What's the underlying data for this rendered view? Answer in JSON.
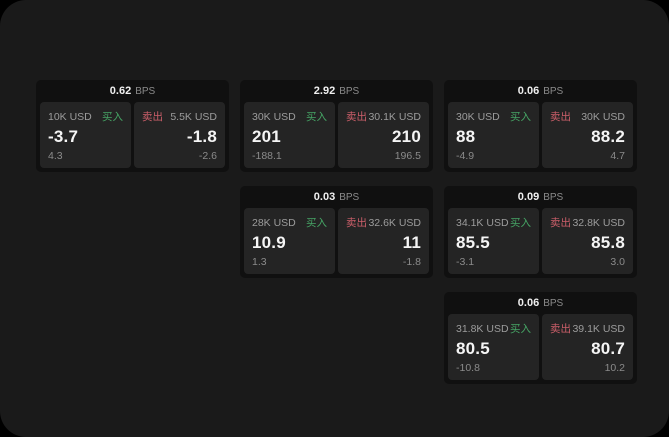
{
  "labels": {
    "bps_suffix": "BPS",
    "buy": "买入",
    "sell": "卖出"
  },
  "colors": {
    "buy_green": "#46a565",
    "sell_red": "#cd5f6a",
    "window_bg": "#1a1a1a",
    "card_bg": "#101010",
    "panel_bg": "#242424"
  },
  "cards": [
    {
      "bps": "0.62",
      "buy": {
        "amount": "10K USD",
        "value": "-3.7",
        "sub": "4.3"
      },
      "sell": {
        "amount": "5.5K USD",
        "value": "-1.8",
        "sub": "-2.6"
      }
    },
    {
      "bps": "2.92",
      "buy": {
        "amount": "30K USD",
        "value": "201",
        "sub": "-188.1"
      },
      "sell": {
        "amount": "30.1K USD",
        "value": "210",
        "sub": "196.5"
      }
    },
    {
      "bps": "0.06",
      "buy": {
        "amount": "30K USD",
        "value": "88",
        "sub": "-4.9"
      },
      "sell": {
        "amount": "30K USD",
        "value": "88.2",
        "sub": "4.7"
      }
    },
    {
      "bps": "0.03",
      "buy": {
        "amount": "28K USD",
        "value": "10.9",
        "sub": "1.3"
      },
      "sell": {
        "amount": "32.6K USD",
        "value": "11",
        "sub": "-1.8"
      }
    },
    {
      "bps": "0.09",
      "buy": {
        "amount": "34.1K USD",
        "value": "85.5",
        "sub": "-3.1"
      },
      "sell": {
        "amount": "32.8K USD",
        "value": "85.8",
        "sub": "3.0"
      }
    },
    {
      "bps": "0.06",
      "buy": {
        "amount": "31.8K USD",
        "value": "80.5",
        "sub": "-10.8"
      },
      "sell": {
        "amount": "39.1K USD",
        "value": "80.7",
        "sub": "10.2"
      }
    }
  ]
}
